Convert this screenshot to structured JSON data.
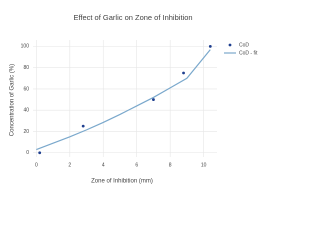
{
  "chart_data": {
    "type": "scatter",
    "title": "Effect of Garlic on Zone of Inhibition",
    "x_label": "Zone of Inhibition (mm)",
    "y_label": "Concentration of Garlic (%)",
    "series": [
      {
        "name": "CoD",
        "mode": "markers",
        "color": "#1f3f8f",
        "x": [
          0.2,
          2.8,
          7,
          8.8,
          10.4
        ],
        "values": [
          0,
          25,
          50,
          75,
          100
        ]
      },
      {
        "name": "CoD - fit",
        "mode": "lines",
        "color": "#7aa8cc",
        "x": [
          0,
          1,
          2,
          3,
          4,
          5,
          6,
          7,
          8,
          9,
          10.4
        ],
        "values": [
          3,
          9,
          15,
          21.5,
          28.5,
          36,
          44,
          52,
          61,
          70,
          97
        ]
      }
    ],
    "xlim": [
      -0.2,
      10.8
    ],
    "ylim": [
      -4,
      106
    ],
    "xticks": [
      0,
      2,
      4,
      6,
      8,
      10
    ],
    "yticks": [
      0,
      20,
      40,
      60,
      80,
      100
    ],
    "grid": true
  }
}
